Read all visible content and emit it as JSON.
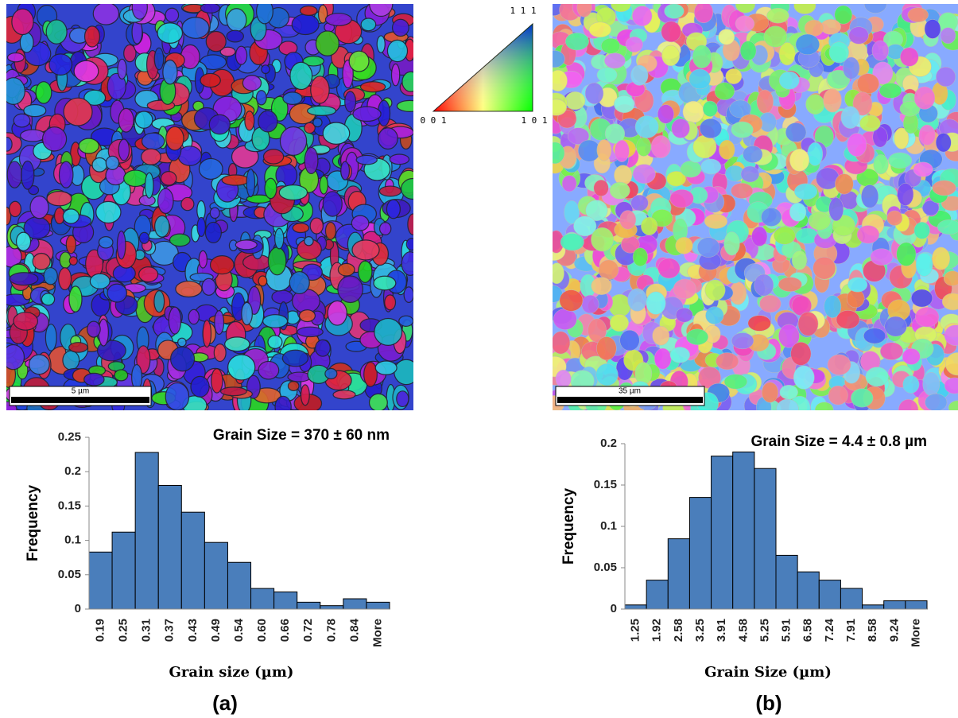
{
  "maps": [
    {
      "scale_bar": "5 µm"
    },
    {
      "scale_bar": "35 µm"
    }
  ],
  "orientation_key": {
    "corners": [
      "0 0 1",
      "1 0 1",
      "1 1 1"
    ]
  },
  "chart_data": [
    {
      "type": "bar",
      "label": "(a)",
      "annotation": "Grain Size = 370 ± 60 nm",
      "x_label": "Grain size (µm)",
      "y_label": "Frequency",
      "color": "#4a7ebb",
      "categories": [
        "0.19",
        "0.25",
        "0.31",
        "0.37",
        "0.43",
        "0.49",
        "0.54",
        "0.60",
        "0.66",
        "0.72",
        "0.78",
        "0.84",
        "More"
      ],
      "values": [
        0.083,
        0.112,
        0.228,
        0.18,
        0.141,
        0.097,
        0.068,
        0.03,
        0.025,
        0.01,
        0.005,
        0.015,
        0.01
      ],
      "ylim": [
        0,
        0.25
      ],
      "yticks": [
        0,
        0.05,
        0.1,
        0.15,
        0.2,
        0.25
      ]
    },
    {
      "type": "bar",
      "label": "(b)",
      "annotation": "Grain Size = 4.4 ± 0.8 µm",
      "x_label": "Grain Size (µm)",
      "y_label": "Frequency",
      "color": "#4a7ebb",
      "categories": [
        "1.25",
        "1.92",
        "2.58",
        "3.25",
        "3.91",
        "4.58",
        "5.25",
        "5.91",
        "6.58",
        "7.24",
        "7.91",
        "8.58",
        "9.24",
        "More"
      ],
      "values": [
        0.005,
        0.035,
        0.085,
        0.135,
        0.185,
        0.19,
        0.17,
        0.065,
        0.045,
        0.035,
        0.025,
        0.005,
        0.01,
        0.01
      ],
      "ylim": [
        0,
        0.2
      ],
      "yticks": [
        0,
        0.05,
        0.1,
        0.15,
        0.2
      ]
    }
  ]
}
